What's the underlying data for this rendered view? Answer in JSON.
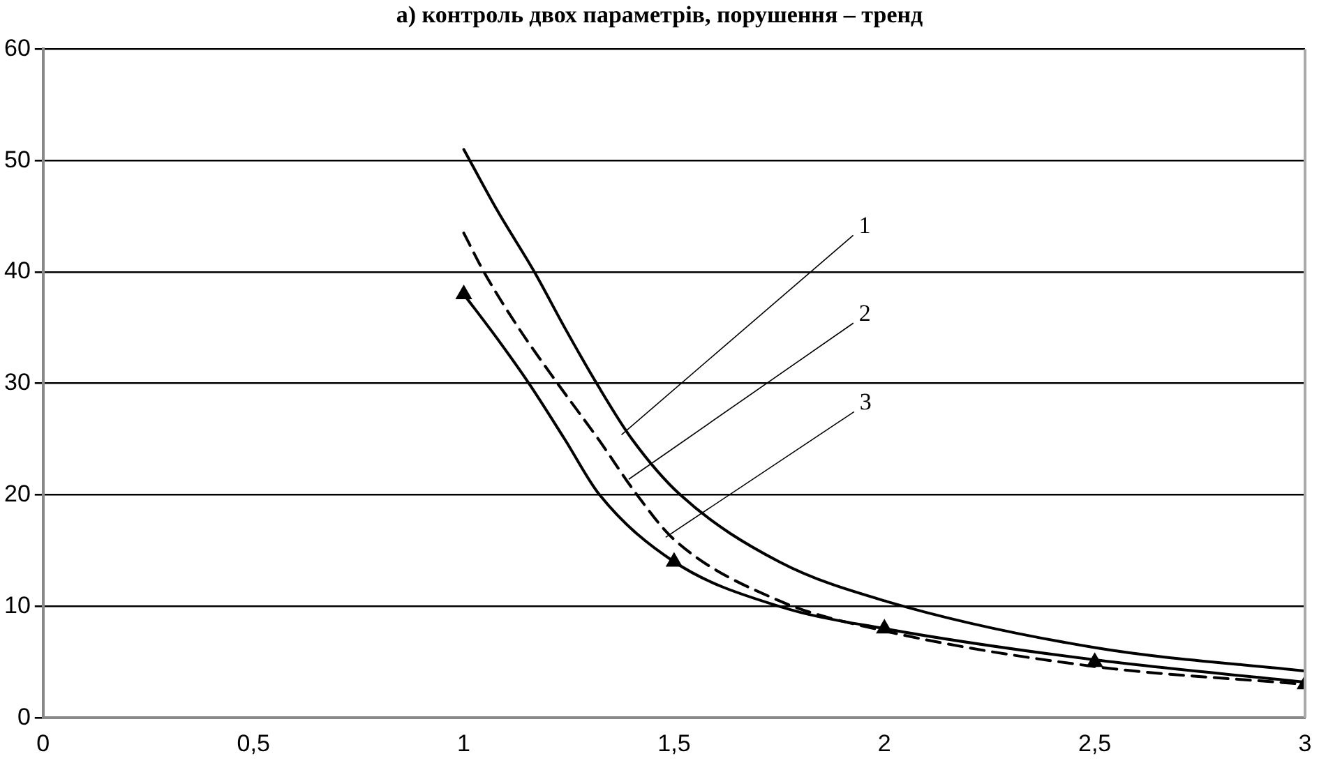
{
  "chart_data": {
    "type": "line",
    "title": "а) контроль двох параметрів, порушення – тренд",
    "xlim": [
      0,
      3
    ],
    "xticks": [
      0,
      {
        "value": 0.5,
        "label": "0,5"
      },
      1,
      {
        "value": 1.5,
        "label": "1,5"
      },
      2,
      {
        "value": 2.5,
        "label": "2,5"
      },
      3
    ],
    "ylim": [
      0,
      60
    ],
    "yticks": [
      0,
      10,
      20,
      30,
      40,
      50,
      60
    ],
    "grid": "y",
    "legend": false,
    "series": [
      {
        "color": "#000000",
        "line_style": "solid",
        "marker": "none",
        "x": [
          1,
          1.08,
          1.168,
          1.24,
          1.316,
          1.4,
          1.515,
          1.75,
          2,
          2.5,
          3
        ],
        "values": [
          51,
          45.5,
          40,
          35,
          30,
          25,
          20,
          14,
          10.5,
          6.3,
          4.2
        ]
      },
      {
        "color": "#000000",
        "line_style": "dashed",
        "marker": "none",
        "x": [
          1,
          1.048,
          1.13,
          1.223,
          1.32,
          1.412,
          1.5,
          1.75,
          2,
          2.5,
          3
        ],
        "values": [
          43.5,
          40,
          35,
          30,
          25,
          20,
          16,
          10.5,
          7.8,
          4.6,
          3
        ]
      },
      {
        "color": "#000000",
        "line_style": "solid",
        "marker": "none",
        "x": [
          1,
          1.08,
          1.155,
          1.24,
          1.323,
          1.5,
          1.75,
          2,
          2.5,
          3
        ],
        "values": [
          38,
          34,
          30,
          25,
          20,
          14,
          10,
          8,
          5.2,
          3.2
        ]
      },
      {
        "type": "scatter",
        "color": "#000000",
        "marker": "triangle",
        "x": [
          1,
          1.5,
          2,
          2.5,
          3
        ],
        "values": [
          38,
          14,
          8,
          5,
          3
        ]
      }
    ],
    "annotations": [
      {
        "text": "1",
        "x": 1.375,
        "y": 25.4
      },
      {
        "text": "2",
        "x": 1.392,
        "y": 21.4
      },
      {
        "text": "3",
        "x": 1.48,
        "y": 16.2
      }
    ]
  }
}
